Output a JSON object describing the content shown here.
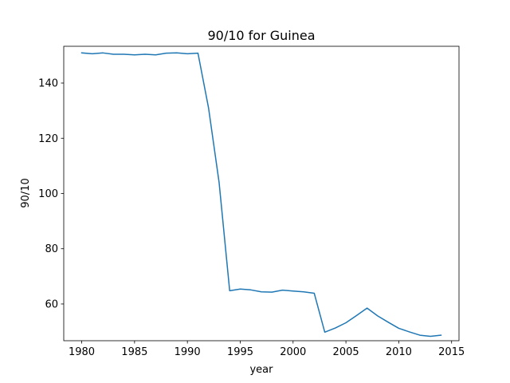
{
  "chart_data": {
    "type": "line",
    "title": "90/10 for Guinea",
    "xlabel": "year",
    "ylabel": "90/10",
    "xlim": [
      1978.3,
      2015.7
    ],
    "ylim": [
      46.7,
      153.3
    ],
    "xticks": [
      1980,
      1985,
      1990,
      1995,
      2000,
      2005,
      2010,
      2015
    ],
    "yticks": [
      60,
      80,
      100,
      120,
      140
    ],
    "grid": false,
    "series_color": "#1f77b4",
    "series": [
      {
        "x": [
          1980,
          1981,
          1982,
          1983,
          1984,
          1985,
          1986,
          1987,
          1988,
          1989,
          1990,
          1991,
          1992,
          1993,
          1994,
          1995,
          1996,
          1997,
          1998,
          1999,
          2000,
          2001,
          2002,
          2003,
          2004,
          2005,
          2006,
          2007,
          2008,
          2009,
          2010,
          2011,
          2012,
          2013,
          2014
        ],
        "values": [
          150.9,
          150.6,
          150.9,
          150.4,
          150.4,
          150.2,
          150.4,
          150.2,
          150.8,
          150.9,
          150.6,
          150.8,
          131.0,
          104.0,
          64.8,
          65.4,
          65.1,
          64.4,
          64.3,
          65.0,
          64.7,
          64.4,
          63.9,
          49.8,
          51.3,
          53.2,
          55.8,
          58.5,
          55.7,
          53.4,
          51.2,
          49.9,
          48.7,
          48.3,
          48.7
        ]
      }
    ]
  }
}
